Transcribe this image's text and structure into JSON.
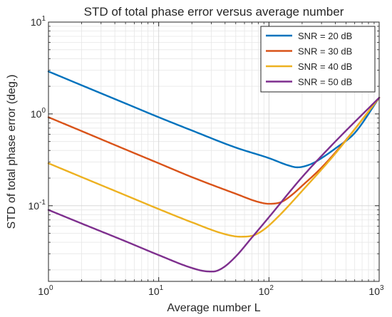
{
  "chart_data": {
    "type": "line",
    "title": "STD of total phase error versus average number",
    "xlabel": "Average number L",
    "ylabel": "STD of total phase error (deg.)",
    "xscale": "log",
    "yscale": "log",
    "xlim": [
      1,
      1000
    ],
    "ylim": [
      0.015,
      10
    ],
    "x_ticks": [
      1,
      10,
      100,
      1000
    ],
    "y_ticks": [
      0.1,
      1,
      10
    ],
    "x_tick_labels": [
      {
        "base": "10",
        "exp": "0"
      },
      {
        "base": "10",
        "exp": "1"
      },
      {
        "base": "10",
        "exp": "2"
      },
      {
        "base": "10",
        "exp": "3"
      }
    ],
    "y_tick_labels": [
      {
        "base": "10",
        "exp": "-1"
      },
      {
        "base": "10",
        "exp": "0"
      },
      {
        "base": "10",
        "exp": "1"
      }
    ],
    "grid": true,
    "minor_grid": true,
    "legend_position": "top-right",
    "series": [
      {
        "name": "SNR = 20 dB",
        "color": "#0072BD",
        "points": [
          [
            1,
            2.9
          ],
          [
            2,
            2.05
          ],
          [
            5,
            1.3
          ],
          [
            10,
            0.92
          ],
          [
            20,
            0.66
          ],
          [
            50,
            0.43
          ],
          [
            100,
            0.33
          ],
          [
            150,
            0.275
          ],
          [
            180,
            0.262
          ],
          [
            200,
            0.265
          ],
          [
            250,
            0.29
          ],
          [
            300,
            0.33
          ],
          [
            400,
            0.42
          ],
          [
            600,
            0.62
          ],
          [
            1000,
            1.5
          ]
        ]
      },
      {
        "name": "SNR = 30 dB",
        "color": "#D95319",
        "points": [
          [
            1,
            0.92
          ],
          [
            2,
            0.65
          ],
          [
            5,
            0.41
          ],
          [
            10,
            0.29
          ],
          [
            20,
            0.205
          ],
          [
            50,
            0.135
          ],
          [
            80,
            0.11
          ],
          [
            100,
            0.105
          ],
          [
            130,
            0.11
          ],
          [
            160,
            0.13
          ],
          [
            200,
            0.165
          ],
          [
            300,
            0.26
          ],
          [
            500,
            0.52
          ],
          [
            1000,
            1.5
          ]
        ]
      },
      {
        "name": "SNR = 40 dB",
        "color": "#EDB120",
        "points": [
          [
            1,
            0.29
          ],
          [
            2,
            0.205
          ],
          [
            5,
            0.13
          ],
          [
            10,
            0.092
          ],
          [
            20,
            0.066
          ],
          [
            40,
            0.049
          ],
          [
            55,
            0.046
          ],
          [
            70,
            0.047
          ],
          [
            90,
            0.055
          ],
          [
            120,
            0.075
          ],
          [
            200,
            0.145
          ],
          [
            400,
            0.37
          ],
          [
            1000,
            1.5
          ]
        ]
      },
      {
        "name": "SNR = 50 dB",
        "color": "#7E2F8E",
        "points": [
          [
            1,
            0.09
          ],
          [
            2,
            0.064
          ],
          [
            5,
            0.041
          ],
          [
            10,
            0.029
          ],
          [
            20,
            0.021
          ],
          [
            27,
            0.0193
          ],
          [
            31,
            0.0192
          ],
          [
            38,
            0.021
          ],
          [
            50,
            0.028
          ],
          [
            70,
            0.045
          ],
          [
            100,
            0.075
          ],
          [
            200,
            0.205
          ],
          [
            400,
            0.5
          ],
          [
            1000,
            1.5
          ]
        ]
      }
    ]
  }
}
